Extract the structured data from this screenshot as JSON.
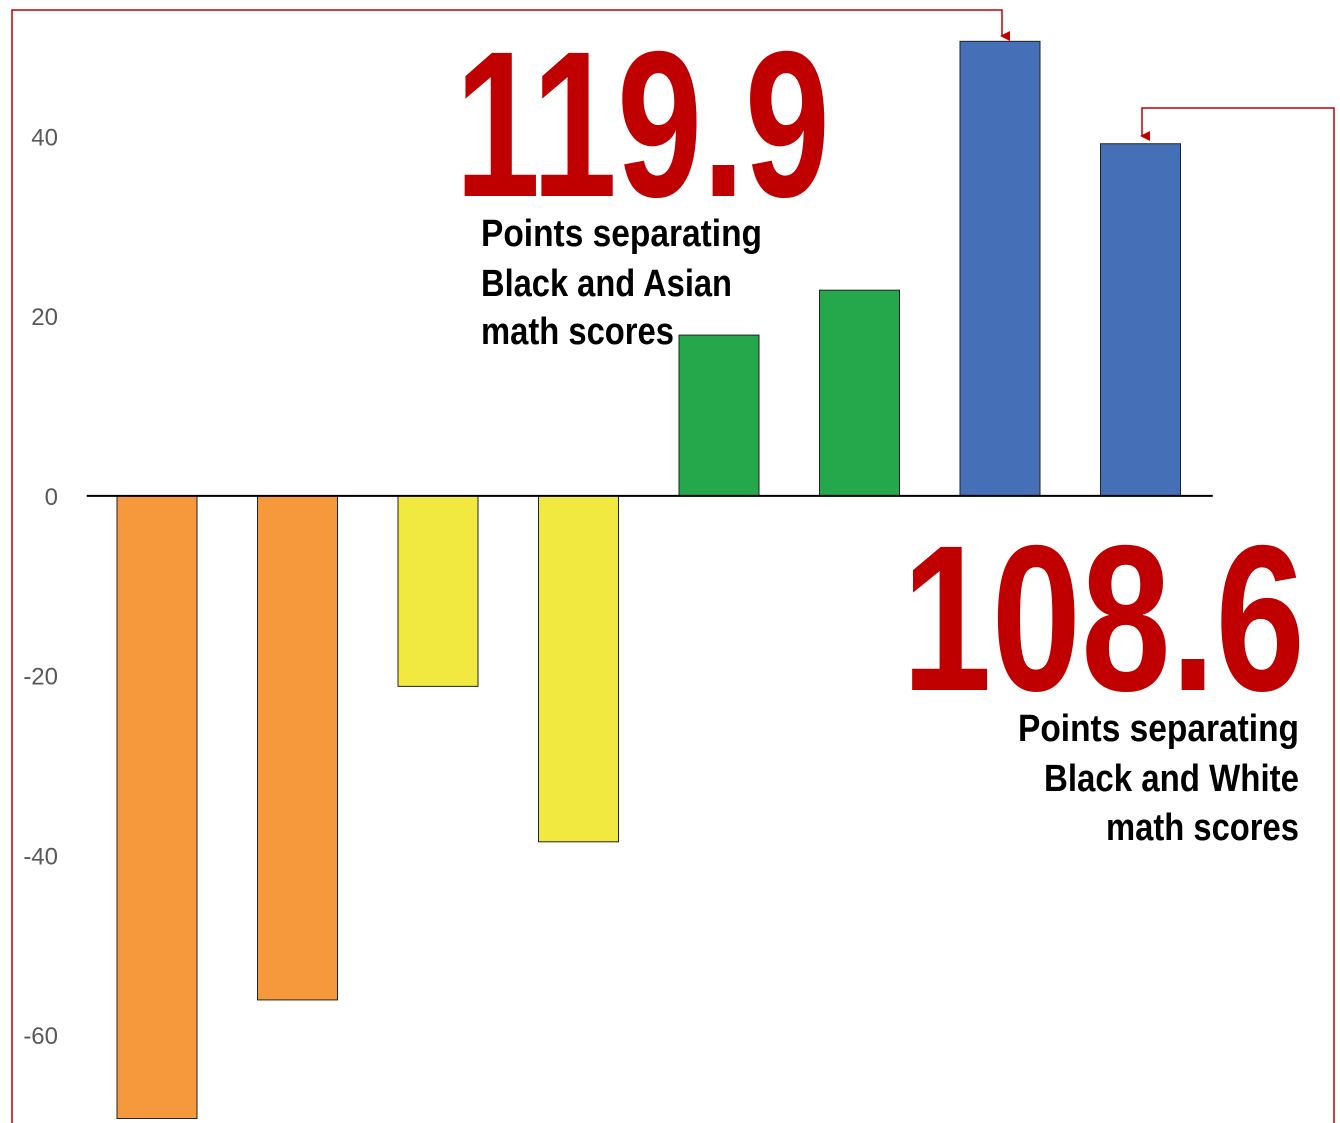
{
  "chart_data": {
    "type": "bar",
    "categories": [
      null,
      null,
      null,
      null,
      null,
      null,
      null,
      null
    ],
    "values": [
      -69.3,
      -56.1,
      -21.2,
      -38.5,
      17.9,
      22.9,
      50.6,
      39.2
    ],
    "colors": [
      "#f5993c",
      "#f5993c",
      "#f1e93f",
      "#f1e93f",
      "#25a74b",
      "#25a74b",
      "#456fb7",
      "#456fb7"
    ],
    "ylim": [
      -69.8,
      55.2
    ],
    "yticks": [
      -60,
      -40,
      -20,
      0,
      20,
      40
    ],
    "grid": false,
    "annotations": [
      {
        "value": "119.9",
        "lines": [
          "Points separating",
          "Black and Asian",
          "math scores"
        ]
      },
      {
        "value": "108.6",
        "lines": [
          "Points separating",
          "Black and White",
          "math scores"
        ]
      }
    ]
  }
}
